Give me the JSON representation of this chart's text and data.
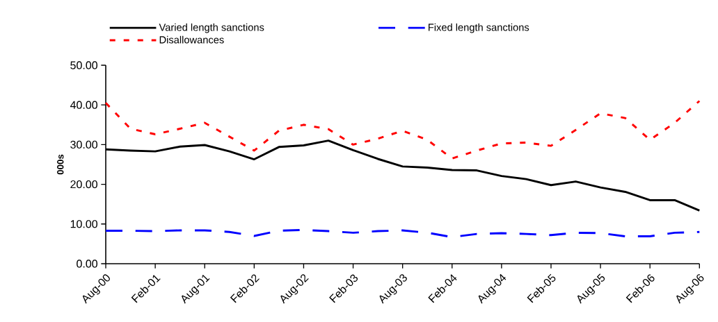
{
  "chart_data": {
    "type": "line",
    "ylabel": "000s",
    "categories": [
      "Aug-00",
      null,
      "Feb-01",
      null,
      "Aug-01",
      null,
      "Feb-02",
      null,
      "Aug-02",
      null,
      "Feb-03",
      null,
      "Aug-03",
      null,
      "Feb-04",
      null,
      "Aug-04",
      null,
      "Feb-05",
      null,
      "Aug-05",
      null,
      "Feb-06",
      null,
      "Aug-06"
    ],
    "series": [
      {
        "name": "Varied length sanctions",
        "color": "#000000",
        "line_style": "solid",
        "values": [
          28.8,
          28.5,
          28.3,
          29.5,
          29.9,
          28.3,
          26.3,
          29.4,
          29.8,
          31.0,
          28.6,
          26.4,
          24.5,
          24.2,
          23.6,
          23.5,
          22.1,
          21.3,
          19.8,
          20.7,
          19.2,
          18.1,
          16.0,
          16.0,
          13.4
        ]
      },
      {
        "name": "Fixed length sanctions",
        "color": "#0000ff",
        "line_style": "dashed",
        "values": [
          8.3,
          8.3,
          8.2,
          8.4,
          8.4,
          8.0,
          7.0,
          8.3,
          8.5,
          8.2,
          7.8,
          8.2,
          8.4,
          7.8,
          6.7,
          7.5,
          7.7,
          7.5,
          7.2,
          7.8,
          7.7,
          6.9,
          6.9,
          7.8,
          8.0
        ]
      },
      {
        "name": "Disallowances",
        "color": "#ff0000",
        "line_style": "dotted",
        "values": [
          40.5,
          34.0,
          32.6,
          34.0,
          35.5,
          32.0,
          28.5,
          33.5,
          35.0,
          33.9,
          30.0,
          31.5,
          33.5,
          31.2,
          26.5,
          28.5,
          30.3,
          30.5,
          29.7,
          33.7,
          37.9,
          36.7,
          31.2,
          35.5,
          41.0
        ]
      }
    ],
    "ylim": [
      0,
      50
    ],
    "yticks": [
      {
        "value": 0,
        "label": "0.00"
      },
      {
        "value": 10,
        "label": "10.00"
      },
      {
        "value": 20,
        "label": "20.00"
      },
      {
        "value": 30,
        "label": "30.00"
      },
      {
        "value": 40,
        "label": "40.00"
      },
      {
        "value": 50,
        "label": "50.00"
      }
    ],
    "grid": false,
    "legend": "top",
    "marker": "none"
  }
}
